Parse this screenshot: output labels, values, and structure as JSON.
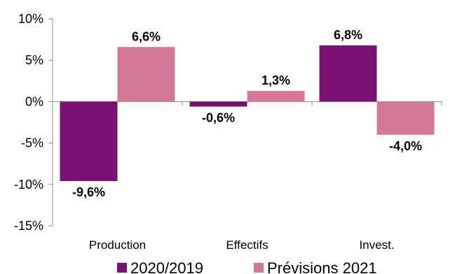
{
  "chart_data": {
    "type": "bar",
    "title": "",
    "xlabel": "",
    "ylabel": "",
    "categories": [
      "Production",
      "Effectifs",
      "Invest."
    ],
    "series": [
      {
        "name": "2020/2019",
        "values": [
          -9.6,
          -0.6,
          6.8
        ],
        "labels": [
          "-9,6%",
          "-0,6%",
          "6,8%"
        ],
        "color": "#7B1172"
      },
      {
        "name": "Prévisions 2021",
        "values": [
          6.6,
          1.3,
          -4.0
        ],
        "labels": [
          "6,6%",
          "1,3%",
          "-4,0%"
        ],
        "color": "#D4789A"
      }
    ],
    "ylim": [
      -15,
      10
    ],
    "yticks": [
      10,
      5,
      0,
      -5,
      -10,
      -15
    ],
    "ytick_labels": [
      "10%",
      "5%",
      "0%",
      "-5%",
      "-10%",
      "-15%"
    ],
    "grid": false,
    "legend_position": "bottom"
  }
}
